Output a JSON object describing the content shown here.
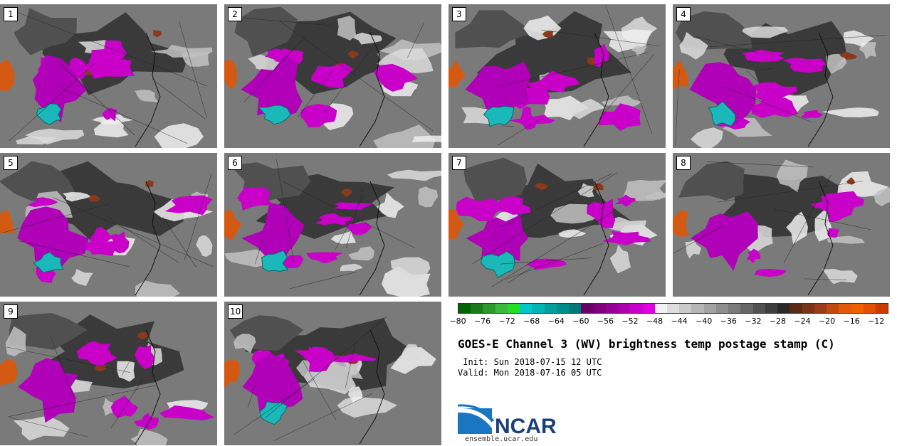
{
  "panels": [
    {
      "label": "1"
    },
    {
      "label": "2"
    },
    {
      "label": "3"
    },
    {
      "label": "4"
    },
    {
      "label": "5"
    },
    {
      "label": "6"
    },
    {
      "label": "7"
    },
    {
      "label": "8"
    },
    {
      "label": "9"
    },
    {
      "label": "10"
    }
  ],
  "colorbar": {
    "colors": [
      "#006400",
      "#1a7a1a",
      "#2a9a2a",
      "#3cb83c",
      "#22dd22",
      "#00c8c8",
      "#00b4b4",
      "#00a0a0",
      "#008c8c",
      "#007878",
      "#6a006a",
      "#800080",
      "#960096",
      "#ac00ac",
      "#c800c8",
      "#e000e0",
      "#f2f2f2",
      "#dedede",
      "#cacaca",
      "#b6b6b6",
      "#a2a2a2",
      "#8e8e8e",
      "#7a7a7a",
      "#666666",
      "#525252",
      "#3e3e3e",
      "#2a2a2a",
      "#5a2a14",
      "#7a3418",
      "#9a3c1a",
      "#c04a10",
      "#e05a08",
      "#f06000",
      "#e05000",
      "#c83c00"
    ],
    "ticks": [
      "−80",
      "−76",
      "−72",
      "−68",
      "−64",
      "−60",
      "−56",
      "−52",
      "−48",
      "−44",
      "−40",
      "−36",
      "−32",
      "−28",
      "−24",
      "−20",
      "−16",
      "−12"
    ]
  },
  "title": "GOES-E Channel 3 (WV) brightness temp postage stamp (C)",
  "init": " Init: Sun 2018-07-15 12 UTC",
  "valid": "Valid: Mon 2018-07-16 05 UTC",
  "logo": {
    "text": "NCAR",
    "url": "ensemble.ucar.edu"
  }
}
